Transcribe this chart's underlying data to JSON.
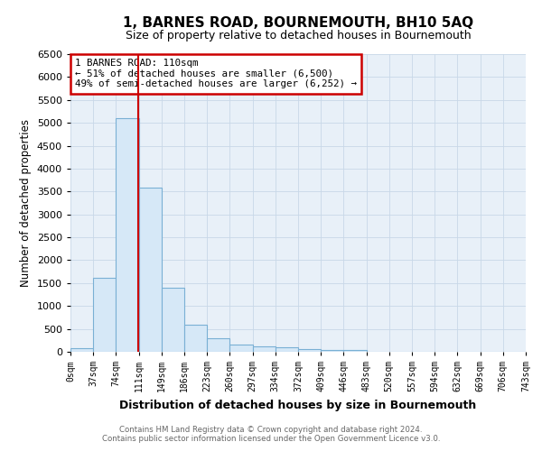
{
  "title": "1, BARNES ROAD, BOURNEMOUTH, BH10 5AQ",
  "subtitle": "Size of property relative to detached houses in Bournemouth",
  "xlabel": "Distribution of detached houses by size in Bournemouth",
  "ylabel": "Number of detached properties",
  "bin_edges": [
    0,
    37,
    74,
    111,
    148,
    185,
    222,
    259,
    296,
    333,
    370,
    407,
    444,
    481,
    518,
    555,
    592,
    629,
    666,
    703,
    740
  ],
  "bin_labels": [
    "0sqm",
    "37sqm",
    "74sqm",
    "111sqm",
    "149sqm",
    "186sqm",
    "223sqm",
    "260sqm",
    "297sqm",
    "334sqm",
    "372sqm",
    "409sqm",
    "446sqm",
    "483sqm",
    "520sqm",
    "557sqm",
    "594sqm",
    "632sqm",
    "669sqm",
    "706sqm",
    "743sqm"
  ],
  "bar_heights": [
    75,
    1620,
    5100,
    3580,
    1400,
    590,
    300,
    150,
    120,
    90,
    50,
    45,
    45,
    0,
    0,
    0,
    0,
    0,
    0,
    0
  ],
  "bar_color": "#d6e8f7",
  "bar_edgecolor": "#7ab0d4",
  "grid_color": "#c8d8e8",
  "property_size": 110,
  "property_name": "1 BARNES ROAD: 110sqm",
  "annotation_line1": "← 51% of detached houses are smaller (6,500)",
  "annotation_line2": "49% of semi-detached houses are larger (6,252) →",
  "vline_color": "#cc0000",
  "annotation_box_color": "#cc0000",
  "ylim": [
    0,
    6500
  ],
  "yticks": [
    0,
    500,
    1000,
    1500,
    2000,
    2500,
    3000,
    3500,
    4000,
    4500,
    5000,
    5500,
    6000,
    6500
  ],
  "footnote1": "Contains HM Land Registry data © Crown copyright and database right 2024.",
  "footnote2": "Contains public sector information licensed under the Open Government Licence v3.0.",
  "bg_color": "#e8f0f8",
  "title_fontsize": 11,
  "subtitle_fontsize": 9
}
